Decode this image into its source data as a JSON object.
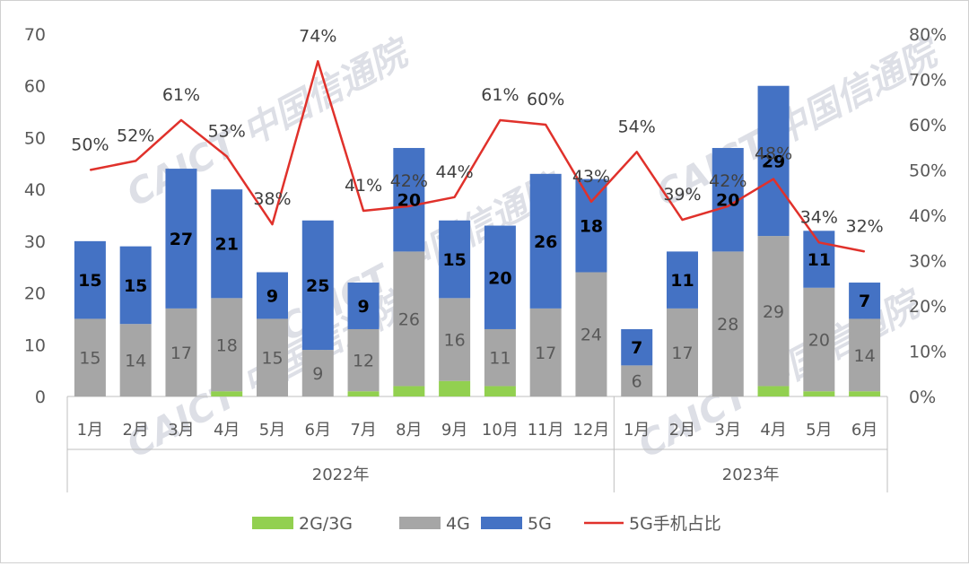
{
  "chart_data": {
    "type": "bar",
    "stacked": true,
    "groups": [
      {
        "label": "2022年",
        "months": [
          "1月",
          "2月",
          "3月",
          "4月",
          "5月",
          "6月",
          "7月",
          "8月",
          "9月",
          "10月",
          "11月",
          "12月"
        ]
      },
      {
        "label": "2023年",
        "months": [
          "1月",
          "2月",
          "3月",
          "4月",
          "5月",
          "6月"
        ]
      }
    ],
    "categories": [
      "1月",
      "2月",
      "3月",
      "4月",
      "5月",
      "6月",
      "7月",
      "8月",
      "9月",
      "10月",
      "11月",
      "12月",
      "1月",
      "2月",
      "3月",
      "4月",
      "5月",
      "6月"
    ],
    "series": [
      {
        "name": "2G/3G",
        "color": "#92d050",
        "values": [
          0,
          0,
          0,
          1,
          0,
          0,
          1,
          2,
          3,
          2,
          0,
          0,
          0,
          0,
          0,
          2,
          1,
          1
        ]
      },
      {
        "name": "4G",
        "color": "#a6a6a6",
        "values": [
          15,
          14,
          17,
          18,
          15,
          9,
          12,
          26,
          16,
          11,
          17,
          24,
          6,
          17,
          28,
          29,
          20,
          14
        ]
      },
      {
        "name": "5G",
        "color": "#4472c4",
        "values": [
          15,
          15,
          27,
          21,
          9,
          25,
          9,
          20,
          15,
          20,
          26,
          18,
          7,
          11,
          20,
          29,
          11,
          7
        ]
      }
    ],
    "line_series": {
      "name": "5G手机占比",
      "color": "#e0312b",
      "values": [
        50,
        52,
        61,
        53,
        38,
        74,
        41,
        42,
        44,
        61,
        60,
        43,
        54,
        39,
        42,
        48,
        34,
        32
      ]
    },
    "four_g_labels": [
      "15",
      "14",
      "17",
      "18",
      "15",
      "9",
      "12",
      "26",
      "16",
      "11",
      "17",
      "24",
      "6",
      "17",
      "28",
      "29",
      "20",
      "14"
    ],
    "five_g_labels": [
      "15",
      "15",
      "27",
      "21",
      "9",
      "25",
      "9",
      "20",
      "15",
      "20",
      "26",
      "18",
      "7",
      "11",
      "20",
      "29",
      "11",
      "7"
    ],
    "pct_labels": [
      "50%",
      "52%",
      "61%",
      "53%",
      "38%",
      "74%",
      "41%",
      "42%",
      "44%",
      "61%",
      "60%",
      "43%",
      "54%",
      "39%",
      "42%",
      "48%",
      "34%",
      "32%"
    ],
    "y_left": {
      "min": 0,
      "max": 70,
      "ticks": [
        "0",
        "10",
        "20",
        "30",
        "40",
        "50",
        "60",
        "70"
      ]
    },
    "y_right": {
      "min": 0,
      "max": 80,
      "ticks": [
        "0%",
        "10%",
        "20%",
        "30%",
        "40%",
        "50%",
        "60%",
        "70%",
        "80%"
      ]
    },
    "legend": {
      "position": "bottom",
      "items": [
        {
          "label": "2G/3G",
          "color": "#92d050",
          "kind": "box"
        },
        {
          "label": "4G",
          "color": "#a6a6a6",
          "kind": "box"
        },
        {
          "label": "5G",
          "color": "#4472c4",
          "kind": "box"
        },
        {
          "label": "5G手机占比",
          "color": "#e0312b",
          "kind": "line"
        }
      ]
    },
    "grid": false
  },
  "watermark": "CAICT 中国信通院"
}
